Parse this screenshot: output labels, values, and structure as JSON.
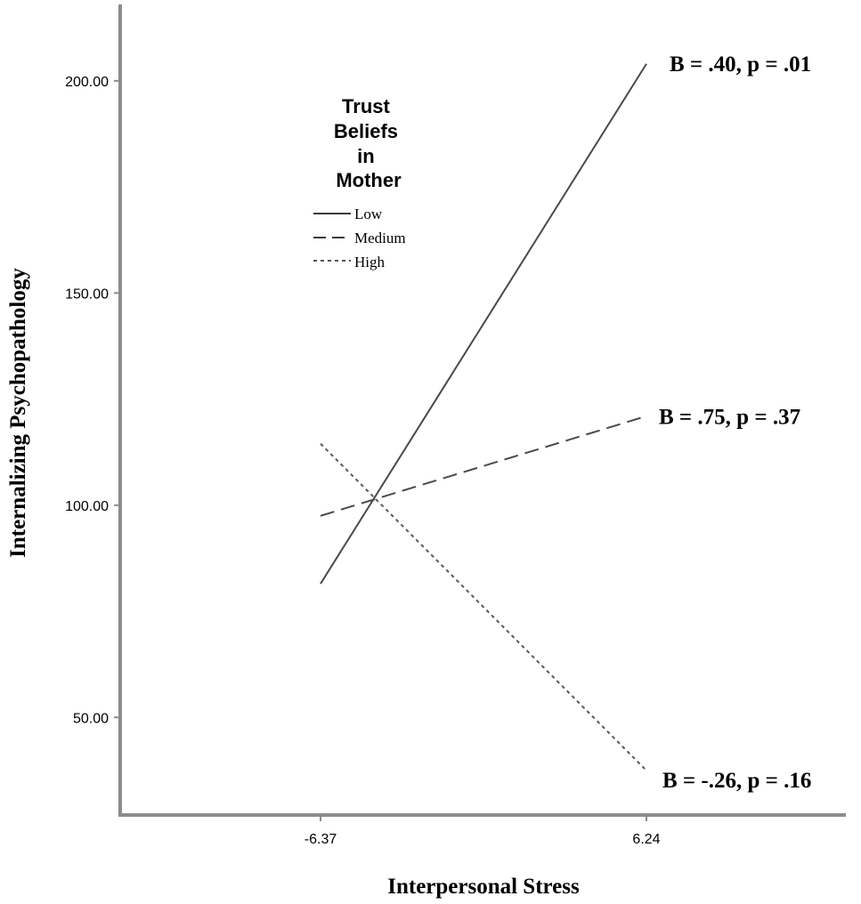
{
  "chart_data": {
    "type": "line",
    "title": "",
    "xlabel": "Interpersonal Stress",
    "ylabel": "Internalizing Psychopathology",
    "x": [
      "-6.37",
      "6.24"
    ],
    "ylim": [
      27,
      218
    ],
    "yticks": [
      "50.00",
      "100.00",
      "150.00",
      "200.00"
    ],
    "grid": false,
    "legend": {
      "title": [
        "Trust",
        "Beliefs",
        "in",
        "Mother"
      ],
      "placement": "top-left"
    },
    "series": [
      {
        "name": "Low",
        "values": [
          81.5,
          204
        ],
        "style": "solid",
        "color": "#4a4a4a",
        "annotation": "B = .40, p = .01"
      },
      {
        "name": "Medium",
        "values": [
          97.5,
          121
        ],
        "style": "dashed",
        "color": "#4a4a4a",
        "annotation": "B = .75, p = .37"
      },
      {
        "name": "High",
        "values": [
          114.5,
          37.5
        ],
        "style": "dotted",
        "color": "#5a5a5a",
        "annotation": "B = -.26, p = .16"
      }
    ]
  }
}
